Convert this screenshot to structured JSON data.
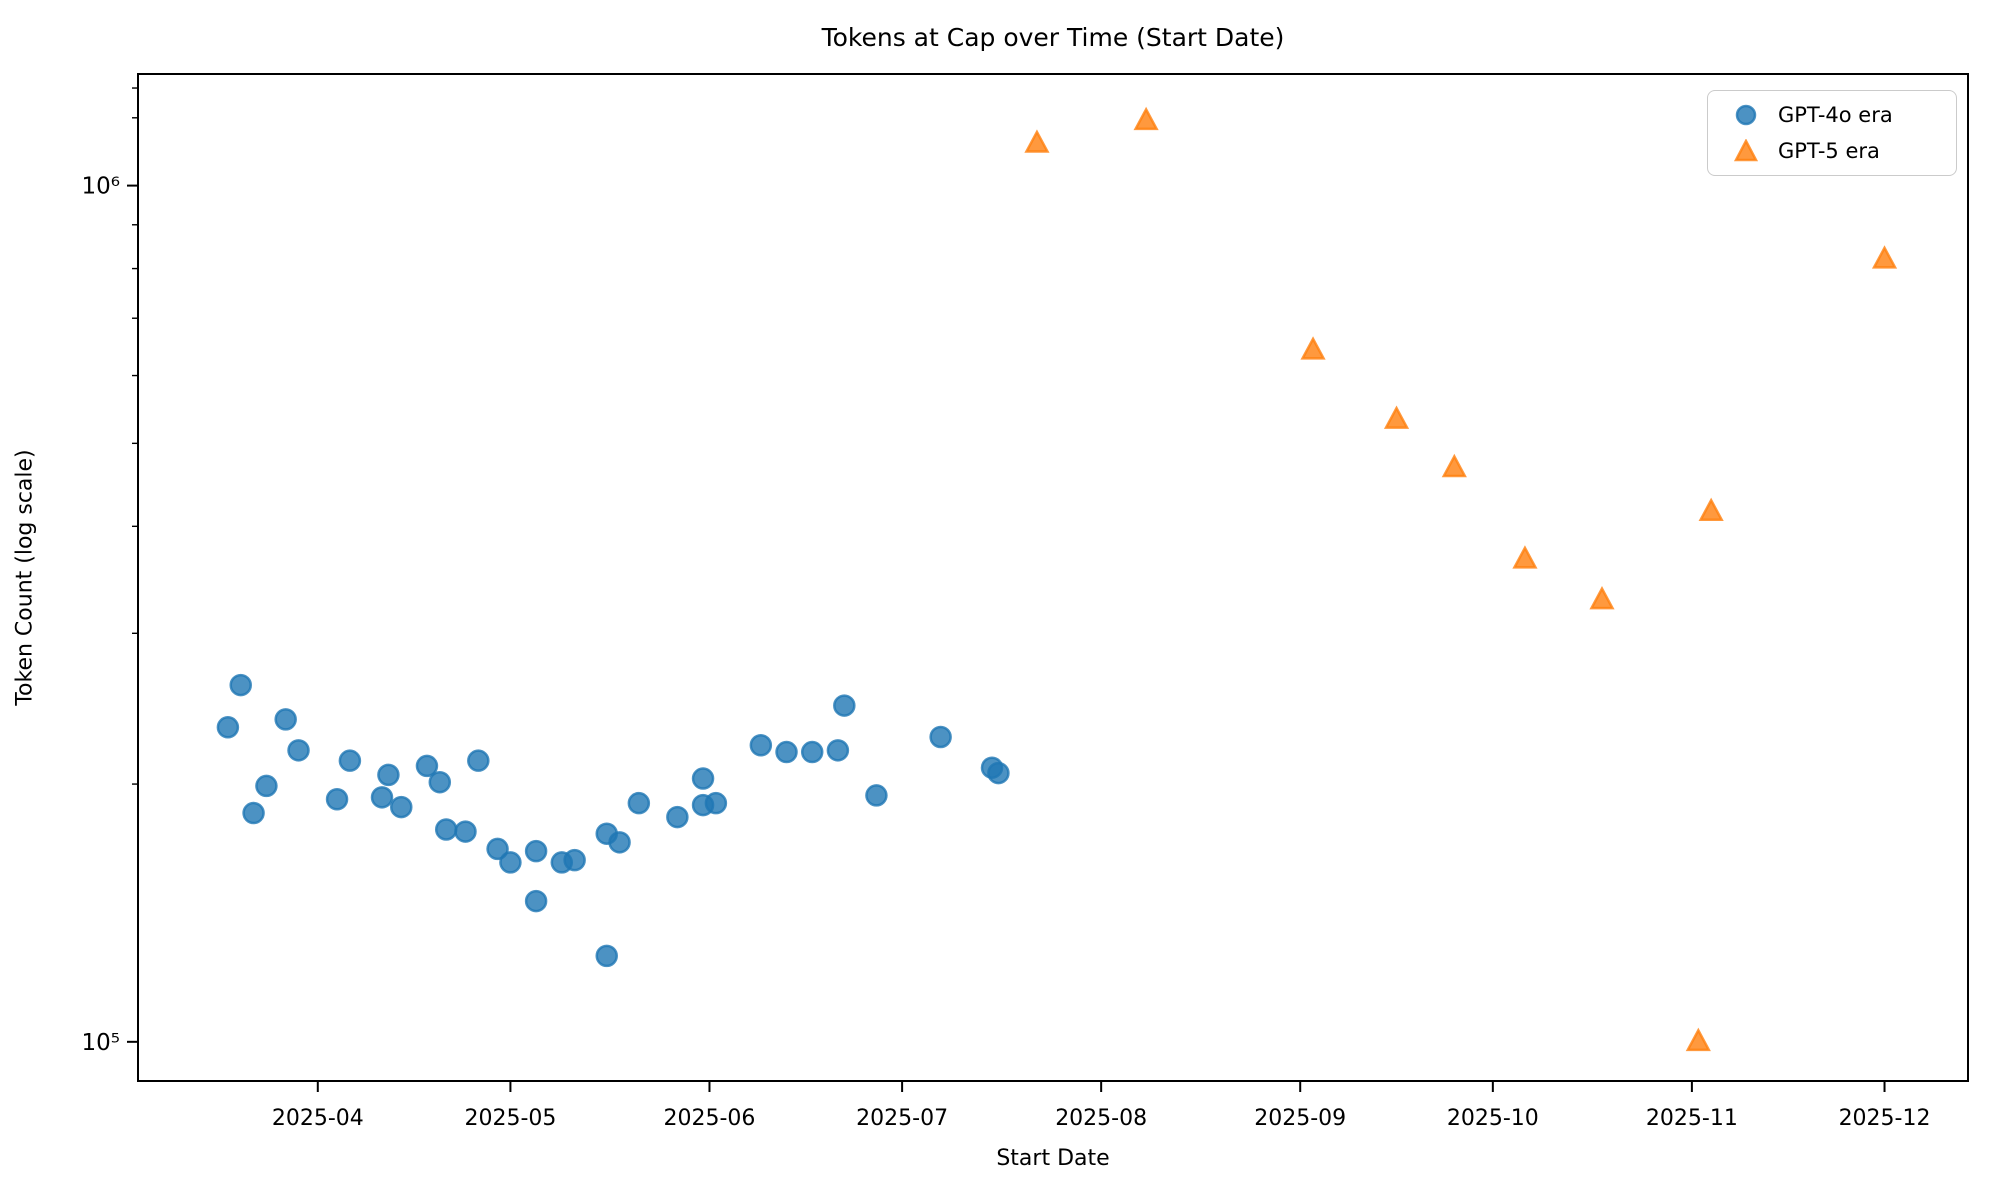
{
  "chart_data": {
    "type": "scatter",
    "title": "Tokens at Cap over Time (Start Date)",
    "xlabel": "Start Date",
    "ylabel": "Token Count (log scale)",
    "yscale": "log",
    "grid": false,
    "xlim": [
      "2025-03-04",
      "2025-12-14"
    ],
    "ylim": [
      90000,
      1350000
    ],
    "marker_alpha": 0.8,
    "x_ticks": [
      {
        "date": "2025-04-01",
        "label": "2025-04"
      },
      {
        "date": "2025-05-01",
        "label": "2025-05"
      },
      {
        "date": "2025-06-01",
        "label": "2025-06"
      },
      {
        "date": "2025-07-01",
        "label": "2025-07"
      },
      {
        "date": "2025-08-01",
        "label": "2025-08"
      },
      {
        "date": "2025-09-01",
        "label": "2025-09"
      },
      {
        "date": "2025-10-01",
        "label": "2025-10"
      },
      {
        "date": "2025-11-01",
        "label": "2025-11"
      },
      {
        "date": "2025-12-01",
        "label": "2025-12"
      }
    ],
    "y_ticks": [
      {
        "value": 100000,
        "label": "10⁵"
      },
      {
        "value": 1000000,
        "label": "10⁶"
      }
    ],
    "y_minor_ticks": [
      200000,
      300000,
      400000,
      500000,
      600000,
      700000,
      800000,
      900000,
      1200000,
      1300000
    ],
    "legend": {
      "position": "upper right"
    },
    "series": [
      {
        "name": "GPT-4o era",
        "marker": "circle",
        "color": "#1f77b4",
        "points": [
          [
            "2025-03-18",
            233000
          ],
          [
            "2025-03-20",
            261000
          ],
          [
            "2025-03-22",
            185000
          ],
          [
            "2025-03-24",
            199000
          ],
          [
            "2025-03-27",
            238000
          ],
          [
            "2025-03-29",
            219000
          ],
          [
            "2025-04-04",
            192000
          ],
          [
            "2025-04-06",
            213000
          ],
          [
            "2025-04-11",
            193000
          ],
          [
            "2025-04-12",
            205000
          ],
          [
            "2025-04-14",
            188000
          ],
          [
            "2025-04-18",
            210000
          ],
          [
            "2025-04-20",
            201000
          ],
          [
            "2025-04-21",
            177000
          ],
          [
            "2025-04-24",
            176000
          ],
          [
            "2025-04-26",
            213000
          ],
          [
            "2025-04-29",
            168000
          ],
          [
            "2025-05-01",
            162000
          ],
          [
            "2025-05-05",
            146000
          ],
          [
            "2025-05-05",
            167000
          ],
          [
            "2025-05-09",
            162000
          ],
          [
            "2025-05-11",
            163000
          ],
          [
            "2025-05-16",
            126000
          ],
          [
            "2025-05-16",
            175000
          ],
          [
            "2025-05-18",
            171000
          ],
          [
            "2025-05-21",
            190000
          ],
          [
            "2025-05-27",
            183000
          ],
          [
            "2025-05-31",
            203000
          ],
          [
            "2025-05-31",
            189000
          ],
          [
            "2025-06-02",
            190000
          ],
          [
            "2025-06-09",
            222000
          ],
          [
            "2025-06-13",
            218000
          ],
          [
            "2025-06-17",
            218000
          ],
          [
            "2025-06-21",
            219000
          ],
          [
            "2025-06-22",
            247000
          ],
          [
            "2025-06-27",
            194000
          ],
          [
            "2025-07-07",
            227000
          ],
          [
            "2025-07-15",
            209000
          ],
          [
            "2025-07-16",
            206000
          ]
        ]
      },
      {
        "name": "GPT-5 era",
        "marker": "triangle",
        "color": "#ff7f0e",
        "points": [
          [
            "2025-07-22",
            1120000
          ],
          [
            "2025-08-08",
            1190000
          ],
          [
            "2025-09-03",
            642000
          ],
          [
            "2025-09-16",
            533000
          ],
          [
            "2025-09-25",
            468000
          ],
          [
            "2025-10-06",
            366000
          ],
          [
            "2025-10-18",
            328000
          ],
          [
            "2025-11-02",
            100000
          ],
          [
            "2025-11-04",
            416000
          ],
          [
            "2025-12-01",
            820000
          ]
        ]
      }
    ]
  }
}
